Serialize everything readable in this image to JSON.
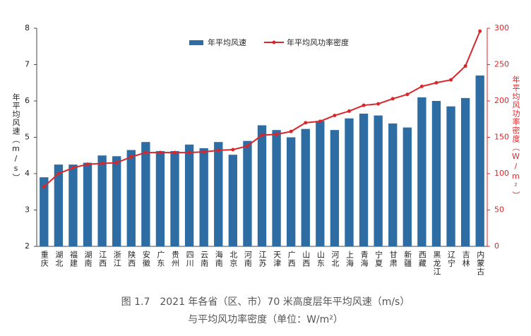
{
  "chart_data": {
    "type": "bar_line",
    "caption": [
      "图 1.7　2021 年各省（区、市）70 米高度层年平均风速（m/s）",
      "与平均风功率密度（单位：W/m²）"
    ],
    "ylabel": "年平均风速（m/s）",
    "y2label": "年平均风功率密度（W/m²）",
    "categories": [
      "重庆",
      "湖北",
      "福建",
      "湖南",
      "江西",
      "浙江",
      "陕西",
      "安徽",
      "广东",
      "贵州",
      "四川",
      "云南",
      "海南",
      "北京",
      "河南",
      "江苏",
      "天津",
      "广西",
      "山西",
      "山东",
      "河北",
      "上海",
      "青海",
      "宁夏",
      "甘肃",
      "新疆",
      "西藏",
      "黑龙江",
      "辽宁",
      "吉林",
      "内蒙古"
    ],
    "series": [
      {
        "name": "年平均风速",
        "color": "#2e6da4",
        "kind": "bar",
        "values": [
          3.9,
          4.25,
          4.25,
          4.3,
          4.5,
          4.48,
          4.65,
          4.87,
          4.62,
          4.62,
          4.8,
          4.7,
          4.87,
          4.52,
          4.9,
          5.33,
          5.2,
          5.0,
          5.23,
          5.45,
          5.2,
          5.52,
          5.65,
          5.6,
          5.38,
          5.27,
          6.1,
          6.0,
          5.85,
          6.08,
          6.7
        ]
      },
      {
        "name": "年平均风功率密度",
        "color": "#d9262b",
        "kind": "line",
        "axis": "y2",
        "values": [
          82,
          100,
          108,
          113,
          114,
          115,
          123,
          129,
          129,
          129,
          129,
          130,
          132,
          133,
          138,
          153,
          154,
          158,
          170,
          172,
          180,
          186,
          194,
          196,
          203,
          209,
          220,
          225,
          229,
          248,
          296
        ]
      }
    ],
    "ylim": [
      2,
      8
    ],
    "yticks": [
      2,
      3,
      4,
      5,
      6,
      7,
      8
    ],
    "y2lim": [
      0,
      300
    ],
    "y2ticks": [
      0,
      50,
      100,
      150,
      200,
      250,
      300
    ]
  }
}
